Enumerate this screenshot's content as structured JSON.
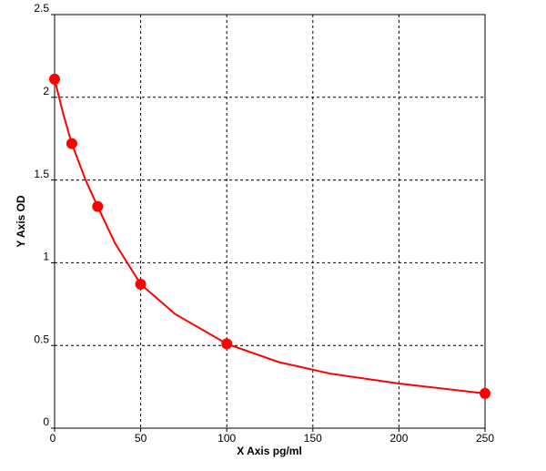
{
  "chart_data": {
    "type": "scatter",
    "x_label": "X Axis pg/ml",
    "y_label": "Y Axis OD",
    "xlim": [
      0,
      250
    ],
    "xticks": [
      0,
      50,
      100,
      150,
      200,
      250
    ],
    "ylim": [
      0,
      2.5
    ],
    "yticks": [
      0,
      0.5,
      1,
      1.5,
      2,
      2.5
    ],
    "grid": true,
    "series": [
      {
        "color": "#ff0000",
        "markers": true,
        "line": false,
        "x": [
          0,
          10,
          25,
          50,
          100,
          250
        ],
        "values": [
          2.11,
          1.72,
          1.34,
          0.87,
          0.51,
          0.21
        ]
      },
      {
        "color": "#ff0000",
        "markers": false,
        "line": true,
        "x": [
          0,
          5,
          10,
          18,
          25,
          35,
          50,
          70,
          100,
          130,
          160,
          200,
          250
        ],
        "values": [
          2.11,
          1.9,
          1.72,
          1.5,
          1.34,
          1.12,
          0.87,
          0.69,
          0.51,
          0.4,
          0.33,
          0.27,
          0.21
        ]
      }
    ]
  }
}
